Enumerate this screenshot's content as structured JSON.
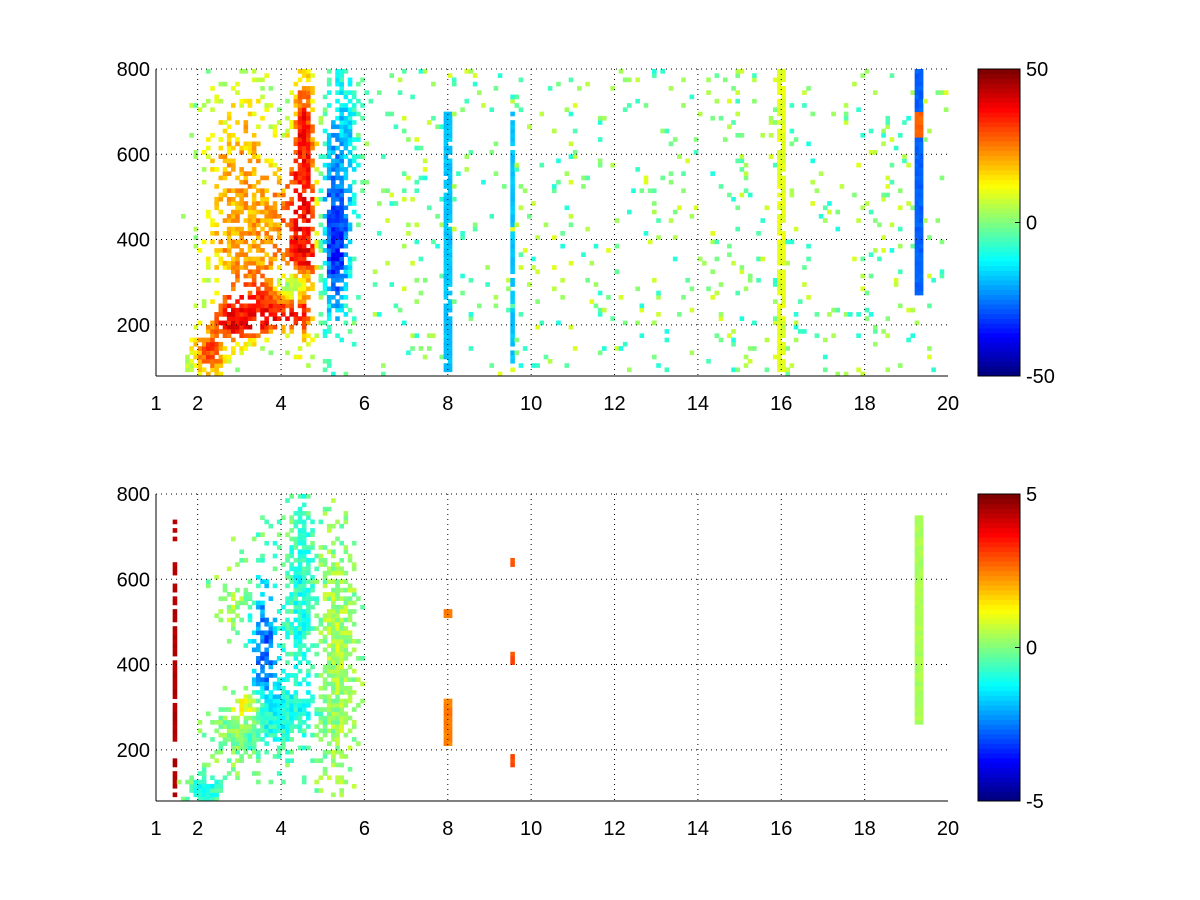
{
  "figure": {
    "background": "#ffffff"
  },
  "chart_data": [
    {
      "type": "heatmap",
      "xlim": [
        1,
        20
      ],
      "ylim": [
        80,
        800
      ],
      "xticks": [
        1,
        2,
        4,
        6,
        8,
        10,
        12,
        14,
        16,
        18,
        20
      ],
      "yticks": [
        200,
        400,
        600,
        800
      ],
      "clim": [
        -50,
        50
      ],
      "colorbar": {
        "ticks": [
          -50,
          0,
          50
        ],
        "colormap": "jet"
      },
      "grid": true,
      "blobs": [
        {
          "cx": 2.3,
          "cy": 130,
          "sx": 0.3,
          "sy": 40,
          "v": 32,
          "d": 0.9
        },
        {
          "cx": 3.0,
          "cy": 215,
          "sx": 0.45,
          "sy": 35,
          "v": 42,
          "d": 0.95
        },
        {
          "cx": 3.8,
          "cy": 250,
          "sx": 0.5,
          "sy": 40,
          "v": 42,
          "d": 0.95
        },
        {
          "cx": 4.5,
          "cy": 360,
          "sx": 0.25,
          "sy": 130,
          "v": 44,
          "d": 0.9
        },
        {
          "cx": 4.55,
          "cy": 620,
          "sx": 0.2,
          "sy": 150,
          "v": 36,
          "d": 0.85
        },
        {
          "cx": 3.4,
          "cy": 420,
          "sx": 0.7,
          "sy": 120,
          "v": 24,
          "d": 0.6
        },
        {
          "cx": 3.0,
          "cy": 560,
          "sx": 0.6,
          "sy": 180,
          "v": 18,
          "d": 0.35
        },
        {
          "cx": 4.3,
          "cy": 290,
          "sx": 0.3,
          "sy": 25,
          "v": -40,
          "d": 0.9
        },
        {
          "cx": 5.3,
          "cy": 420,
          "sx": 0.25,
          "sy": 160,
          "v": -38,
          "d": 0.95
        },
        {
          "cx": 5.5,
          "cy": 650,
          "sx": 0.25,
          "sy": 150,
          "v": -12,
          "d": 0.7
        }
      ],
      "columns": [
        {
          "x": 8.0,
          "y0": 90,
          "y1": 700,
          "v": -18,
          "d": 0.9
        },
        {
          "x": 9.55,
          "y0": 90,
          "y1": 700,
          "v": -18,
          "d": 0.8
        },
        {
          "x": 16.0,
          "y0": 90,
          "y1": 800,
          "v": 10,
          "d": 0.85
        },
        {
          "x": 19.3,
          "y0": 270,
          "y1": 800,
          "v": -28,
          "d": 1.0
        },
        {
          "x": 19.3,
          "y0": 640,
          "y1": 700,
          "v": 28,
          "d": 1.0
        }
      ],
      "noise": {
        "x_from": 6.0,
        "x_to": 20.0,
        "density": 0.06,
        "v_range": [
          -10,
          10
        ]
      }
    },
    {
      "type": "heatmap",
      "xlim": [
        1,
        20
      ],
      "ylim": [
        80,
        800
      ],
      "xticks": [
        1,
        2,
        4,
        6,
        8,
        10,
        12,
        14,
        16,
        18,
        20
      ],
      "yticks": [
        200,
        400,
        600,
        800
      ],
      "clim": [
        -5,
        5
      ],
      "colorbar": {
        "ticks": [
          -5,
          0,
          5
        ],
        "colormap": "jet"
      },
      "grid": true,
      "blobs": [
        {
          "cx": 2.2,
          "cy": 110,
          "sx": 0.3,
          "sy": 25,
          "v": -1,
          "d": 0.9
        },
        {
          "cx": 3.1,
          "cy": 240,
          "sx": 0.45,
          "sy": 40,
          "v": 0,
          "d": 0.95
        },
        {
          "cx": 4.0,
          "cy": 280,
          "sx": 0.6,
          "sy": 60,
          "v": -1,
          "d": 0.9
        },
        {
          "cx": 3.2,
          "cy": 300,
          "sx": 0.25,
          "sy": 25,
          "v": 2.5,
          "d": 0.9
        },
        {
          "cx": 3.6,
          "cy": 450,
          "sx": 0.25,
          "sy": 120,
          "v": -3,
          "d": 0.6
        },
        {
          "cx": 4.5,
          "cy": 560,
          "sx": 0.25,
          "sy": 200,
          "v": -1,
          "d": 0.8
        },
        {
          "cx": 5.3,
          "cy": 400,
          "sx": 0.3,
          "sy": 200,
          "v": 0.5,
          "d": 0.85
        },
        {
          "cx": 3.0,
          "cy": 560,
          "sx": 0.35,
          "sy": 60,
          "v": 0.5,
          "d": 0.5
        }
      ],
      "columns": [
        {
          "x": 1.45,
          "y0": 90,
          "y1": 740,
          "v": 4.5,
          "d": 0.7
        },
        {
          "x": 8.0,
          "y0": 210,
          "y1": 320,
          "v": 2.5,
          "d": 1.0
        },
        {
          "x": 8.0,
          "y0": 510,
          "y1": 525,
          "v": 2.5,
          "d": 1.0
        },
        {
          "x": 9.55,
          "y0": 630,
          "y1": 650,
          "v": 3.0,
          "d": 1.0
        },
        {
          "x": 9.55,
          "y0": 400,
          "y1": 425,
          "v": 3.0,
          "d": 1.0
        },
        {
          "x": 9.55,
          "y0": 165,
          "y1": 190,
          "v": 3.0,
          "d": 1.0
        },
        {
          "x": 19.3,
          "y0": 265,
          "y1": 745,
          "v": 0.4,
          "d": 1.0
        }
      ],
      "noise": {
        "x_from": 6.0,
        "x_to": 20.0,
        "density": 0.0,
        "v_range": [
          0,
          0
        ]
      }
    }
  ]
}
